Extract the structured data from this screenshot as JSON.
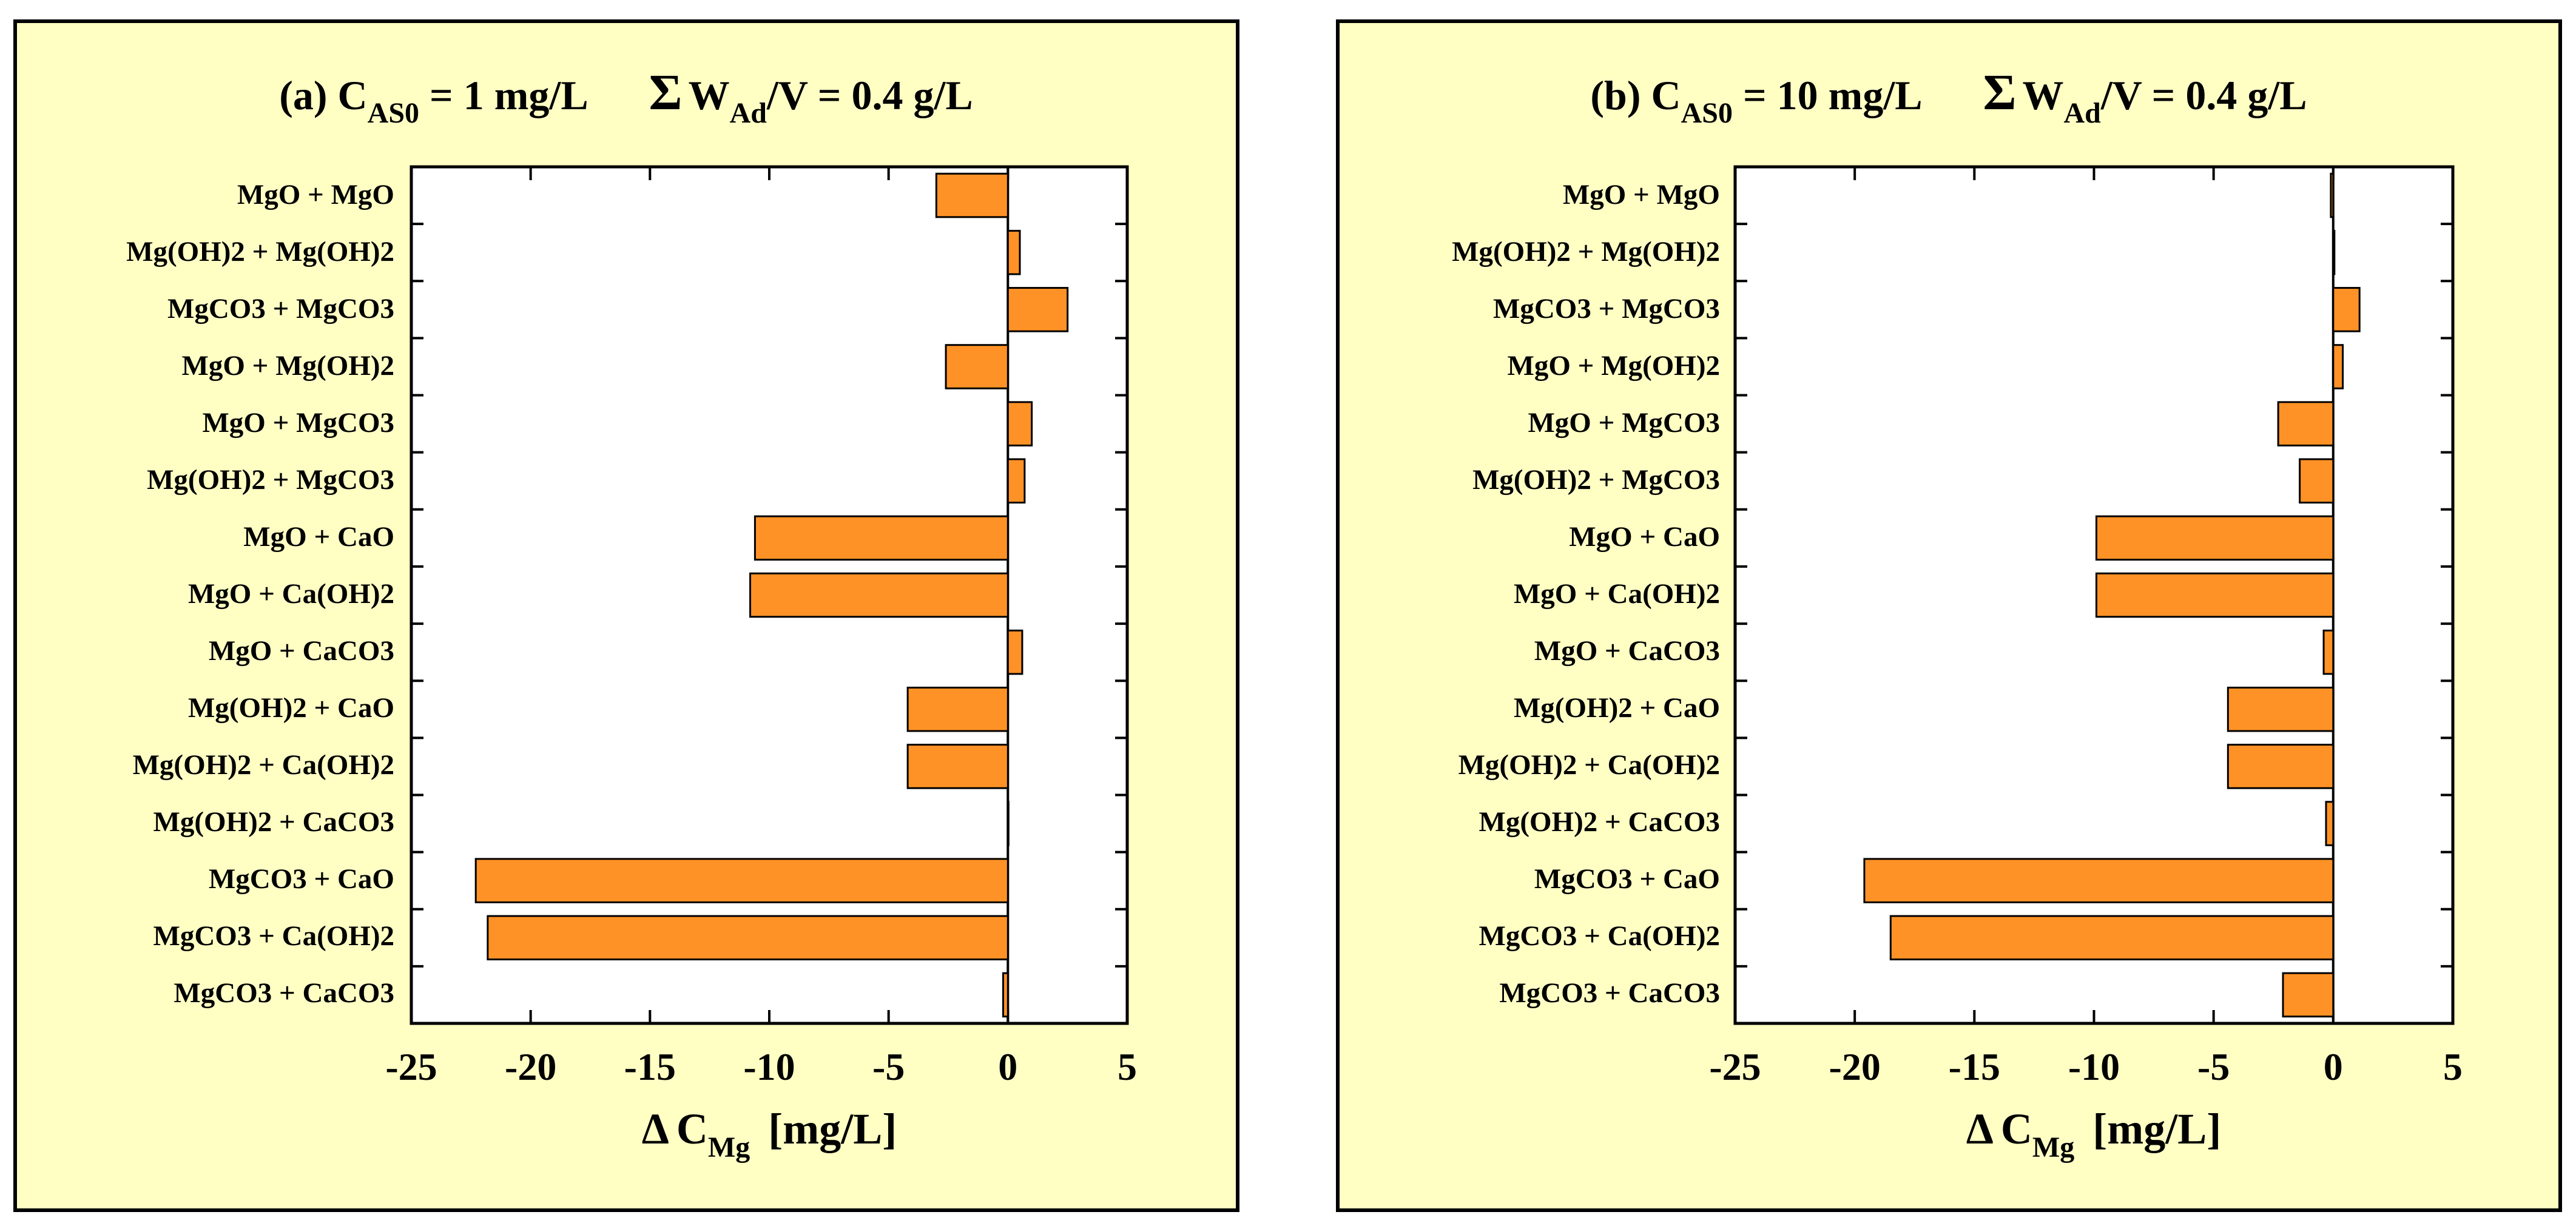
{
  "chart_data": [
    {
      "type": "bar",
      "orientation": "horizontal",
      "title": {
        "prefix": "(a) C",
        "sub1": "AS0",
        "mid": " = 1 mg/L",
        "sigma": "Σ",
        "w": "W",
        "sub2": "Ad",
        "suffix": "/V =  0.4 g/L"
      },
      "xlabel": {
        "delta": "Δ",
        "c": "C",
        "sub": "Mg",
        "unit": "[mg/L]"
      },
      "xlim": [
        -25,
        5
      ],
      "xticks": [
        -25,
        -20,
        -15,
        -10,
        -5,
        0,
        5
      ],
      "categories": [
        "MgO + MgO",
        "Mg(OH)2 + Mg(OH)2",
        "MgCO3 + MgCO3",
        "MgO + Mg(OH)2",
        "MgO + MgCO3",
        "Mg(OH)2 + MgCO3",
        "MgO + CaO",
        "MgO + Ca(OH)2",
        "MgO + CaCO3",
        "Mg(OH)2 + CaO",
        "Mg(OH)2 + Ca(OH)2",
        "Mg(OH)2 + CaCO3",
        "MgCO3 + CaO",
        "MgCO3 + Ca(OH)2",
        "MgCO3 + CaCO3"
      ],
      "values": [
        -3.0,
        0.5,
        2.5,
        -2.6,
        1.0,
        0.7,
        -10.6,
        -10.8,
        0.6,
        -4.2,
        -4.2,
        0.0,
        -22.3,
        -21.8,
        -0.2
      ],
      "bar_color": "#ff9226",
      "panel_color": "#ffffc4"
    },
    {
      "type": "bar",
      "orientation": "horizontal",
      "title": {
        "prefix": "(b) C",
        "sub1": "AS0",
        "mid": " = 10 mg/L",
        "sigma": "Σ",
        "w": "W",
        "sub2": "Ad",
        "suffix": "/V =  0.4 g/L"
      },
      "xlabel": {
        "delta": "Δ",
        "c": "C",
        "sub": "Mg",
        "unit": "[mg/L]"
      },
      "xlim": [
        -25,
        5
      ],
      "xticks": [
        -25,
        -20,
        -15,
        -10,
        -5,
        0,
        5
      ],
      "categories": [
        "MgO + MgO",
        "Mg(OH)2 + Mg(OH)2",
        "MgCO3 + MgCO3",
        "MgO + Mg(OH)2",
        "MgO + MgCO3",
        "Mg(OH)2 + MgCO3",
        "MgO + CaO",
        "MgO + Ca(OH)2",
        "MgO + CaCO3",
        "Mg(OH)2 + CaO",
        "Mg(OH)2 + Ca(OH)2",
        "Mg(OH)2 + CaCO3",
        "MgCO3 + CaO",
        "MgCO3 + Ca(OH)2",
        "MgCO3 + CaCO3"
      ],
      "values": [
        -0.1,
        0.05,
        1.1,
        0.4,
        -2.3,
        -1.4,
        -9.9,
        -9.9,
        -0.4,
        -4.4,
        -4.4,
        -0.3,
        -19.6,
        -18.5,
        -2.1
      ],
      "bar_color": "#ff9226",
      "panel_color": "#ffffc4"
    }
  ]
}
